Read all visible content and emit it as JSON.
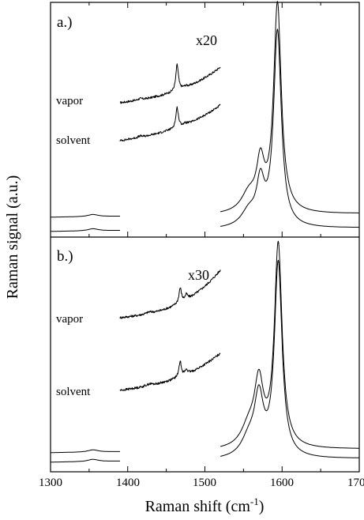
{
  "chart_data": {
    "type": "line",
    "xlabel": "Raman shift (cm",
    "xlabel_superscript": "-1",
    "xlabel_suffix": ")",
    "ylabel": "Raman signal (a.u.)",
    "xlim": [
      1300,
      1700
    ],
    "x_ticks": [
      "1300",
      "1400",
      "1500",
      "1600",
      "1700"
    ],
    "grid": false,
    "panels": [
      {
        "label": "a.)",
        "multiplier": "x20",
        "magnified_range": [
          1390,
          1520
        ],
        "series": [
          {
            "name": "vapor",
            "baseline_peaks": [
              [
                1355,
                0.05,
                8
              ],
              [
                1557,
                0.42,
                12
              ],
              [
                1572,
                1.05,
                6
              ],
              [
                1594,
                4.8,
                6
              ]
            ],
            "baseline_slope": 0.02,
            "magnified_peaks": [
              [
                1416,
                0.05,
                3
              ],
              [
                1464,
                1.1,
                2
              ],
              [
                1475,
                0.06,
                3
              ]
            ],
            "magnified_slope": 0.6,
            "magnified_curve": 0.9
          },
          {
            "name": "solvent",
            "baseline_peaks": [
              [
                1355,
                0.05,
                8
              ],
              [
                1557,
                0.35,
                12
              ],
              [
                1572,
                0.95,
                6
              ],
              [
                1594,
                4.5,
                6
              ]
            ],
            "baseline_slope": 0.02,
            "magnified_peaks": [
              [
                1416,
                0.05,
                3
              ],
              [
                1464,
                0.85,
                2
              ],
              [
                1475,
                0.06,
                3
              ]
            ],
            "magnified_slope": 0.7,
            "magnified_curve": 0.8
          }
        ]
      },
      {
        "label": "b.)",
        "multiplier": "x30",
        "magnified_range": [
          1390,
          1520
        ],
        "series": [
          {
            "name": "vapor",
            "baseline_peaks": [
              [
                1355,
                0.05,
                8
              ],
              [
                1557,
                0.45,
                12
              ],
              [
                1570,
                1.35,
                7
              ],
              [
                1595,
                4.5,
                6
              ]
            ],
            "baseline_slope": 0.02,
            "magnified_peaks": [
              [
                1428,
                0.06,
                5
              ],
              [
                1468,
                0.58,
                2
              ],
              [
                1476,
                0.2,
                2
              ]
            ],
            "magnified_slope": 0.45,
            "magnified_curve": 1.4
          },
          {
            "name": "solvent",
            "baseline_peaks": [
              [
                1355,
                0.05,
                8
              ],
              [
                1557,
                0.4,
                12
              ],
              [
                1570,
                1.25,
                7
              ],
              [
                1595,
                4.3,
                6
              ]
            ],
            "baseline_slope": 0.02,
            "magnified_peaks": [
              [
                1428,
                0.07,
                5
              ],
              [
                1468,
                0.6,
                2
              ],
              [
                1476,
                0.18,
                2
              ]
            ],
            "magnified_slope": 0.55,
            "magnified_curve": 0.9
          }
        ]
      }
    ]
  }
}
